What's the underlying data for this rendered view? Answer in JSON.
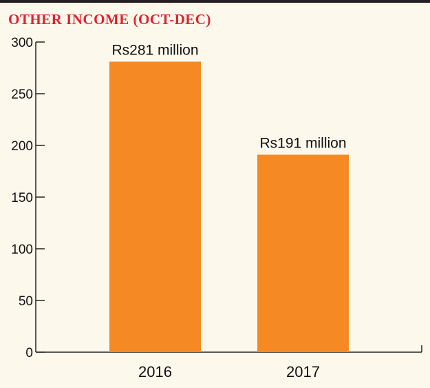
{
  "chart_data": {
    "type": "bar",
    "title": "OTHER INCOME (OCT-DEC)",
    "categories": [
      "2016",
      "2017"
    ],
    "values": [
      281,
      191
    ],
    "data_labels": [
      "Rs281 million",
      "Rs191 million"
    ],
    "yticks": [
      0,
      50,
      100,
      150,
      200,
      250,
      300
    ],
    "ylim": [
      0,
      300
    ],
    "xlabel": "",
    "ylabel": "",
    "grid": false,
    "bar_color": "#f58a24",
    "title_color": "#e2202e",
    "background": "#fdf8ec"
  }
}
